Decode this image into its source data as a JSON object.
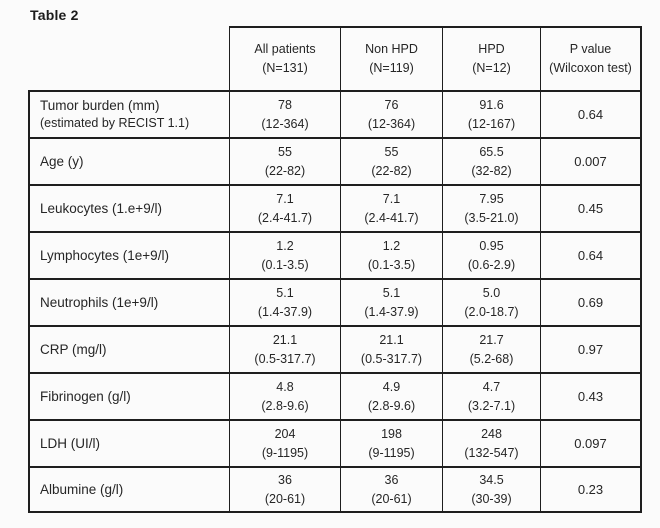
{
  "title": "Table 2",
  "colors": {
    "line": "#1e1e1e",
    "text": "#262626",
    "background": "#fbfbfb"
  },
  "table": {
    "header": {
      "col_all": {
        "line1": "All patients",
        "line2": "(N=131)"
      },
      "col_non": {
        "line1": "Non HPD",
        "line2": "(N=119)"
      },
      "col_hpd": {
        "line1": "HPD",
        "line2": "(N=12)"
      },
      "col_p": {
        "line1": "P value",
        "line2": "(Wilcoxon test)"
      }
    },
    "rows": [
      {
        "label": "Tumor burden (mm)",
        "sublabel": "(estimated by RECIST 1.1)",
        "all": {
          "median": "78",
          "range": "(12-364)"
        },
        "non": {
          "median": "76",
          "range": "(12-364)"
        },
        "hpd": {
          "median": "91.6",
          "range": "(12-167)"
        },
        "p": "0.64"
      },
      {
        "label": "Age (y)",
        "all": {
          "median": "55",
          "range": "(22-82)"
        },
        "non": {
          "median": "55",
          "range": "(22-82)"
        },
        "hpd": {
          "median": "65.5",
          "range": "(32-82)"
        },
        "p": "0.007"
      },
      {
        "label": "Leukocytes (1.e+9/l)",
        "all": {
          "median": "7.1",
          "range": "(2.4-41.7)"
        },
        "non": {
          "median": "7.1",
          "range": "(2.4-41.7)"
        },
        "hpd": {
          "median": "7.95",
          "range": "(3.5-21.0)"
        },
        "p": "0.45"
      },
      {
        "label": "Lymphocytes (1e+9/l)",
        "all": {
          "median": "1.2",
          "range": "(0.1-3.5)"
        },
        "non": {
          "median": "1.2",
          "range": "(0.1-3.5)"
        },
        "hpd": {
          "median": "0.95",
          "range": "(0.6-2.9)"
        },
        "p": "0.64"
      },
      {
        "label": "Neutrophils (1e+9/l)",
        "all": {
          "median": "5.1",
          "range": "(1.4-37.9)"
        },
        "non": {
          "median": "5.1",
          "range": "(1.4-37.9)"
        },
        "hpd": {
          "median": "5.0",
          "range": "(2.0-18.7)"
        },
        "p": "0.69"
      },
      {
        "label": "CRP (mg/l)",
        "all": {
          "median": "21.1",
          "range": "(0.5-317.7)"
        },
        "non": {
          "median": "21.1",
          "range": "(0.5-317.7)"
        },
        "hpd": {
          "median": "21.7",
          "range": "(5.2-68)"
        },
        "p": "0.97"
      },
      {
        "label": "Fibrinogen (g/l)",
        "all": {
          "median": "4.8",
          "range": "(2.8-9.6)"
        },
        "non": {
          "median": "4.9",
          "range": "(2.8-9.6)"
        },
        "hpd": {
          "median": "4.7",
          "range": "(3.2-7.1)"
        },
        "p": "0.43"
      },
      {
        "label": "LDH (UI/l)",
        "all": {
          "median": "204",
          "range": "(9-1195)"
        },
        "non": {
          "median": "198",
          "range": "(9-1195)"
        },
        "hpd": {
          "median": "248",
          "range": "(132-547)"
        },
        "p": "0.097"
      },
      {
        "label": "Albumine (g/l)",
        "all": {
          "median": "36",
          "range": "(20-61)"
        },
        "non": {
          "median": "36",
          "range": "(20-61)"
        },
        "hpd": {
          "median": "34.5",
          "range": "(30-39)"
        },
        "p": "0.23"
      }
    ]
  }
}
